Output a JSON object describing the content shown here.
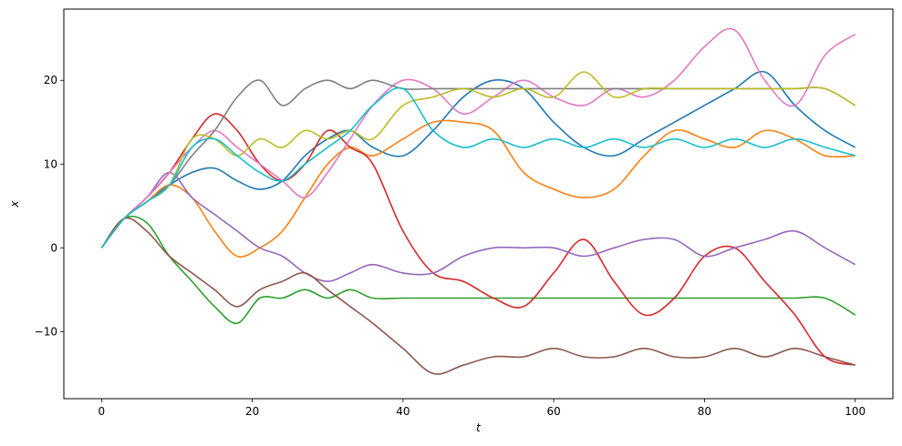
{
  "chart_data": {
    "type": "line",
    "xlabel": "t",
    "ylabel": "x",
    "xlim": [
      -5,
      105
    ],
    "ylim": [
      -18,
      28.5
    ],
    "xticks": [
      0,
      20,
      40,
      60,
      80,
      100
    ],
    "yticks": [
      -10,
      0,
      10,
      20
    ],
    "xtick_labels": [
      "0",
      "20",
      "40",
      "60",
      "80",
      "100"
    ],
    "ytick_labels": [
      "−10",
      "0",
      "10",
      "20"
    ],
    "grid": false,
    "colors": [
      "#1f77b4",
      "#ff7f0e",
      "#2ca02c",
      "#d62728",
      "#9467bd",
      "#8c564b",
      "#e377c2",
      "#7f7f7f",
      "#bcbd22",
      "#17becf"
    ],
    "series": [
      {
        "color": "#1f77b4",
        "x": [
          0,
          3,
          6,
          9,
          12,
          15,
          18,
          21,
          24,
          27,
          30,
          33,
          36,
          40,
          44,
          48,
          52,
          56,
          60,
          64,
          68,
          72,
          76,
          80,
          84,
          88,
          92,
          96,
          100
        ],
        "y": [
          0,
          3.5,
          5.5,
          7.5,
          9,
          9.5,
          8,
          7,
          8,
          11,
          13,
          14,
          12,
          11,
          14,
          18,
          20,
          19,
          15,
          12,
          11,
          13,
          15,
          17,
          19,
          21,
          17,
          14,
          12
        ]
      },
      {
        "color": "#ff7f0e",
        "x": [
          0,
          3,
          6,
          9,
          12,
          15,
          18,
          21,
          24,
          27,
          30,
          33,
          36,
          40,
          44,
          48,
          52,
          56,
          60,
          64,
          68,
          72,
          76,
          80,
          84,
          88,
          92,
          96,
          100
        ],
        "y": [
          0,
          3.5,
          5.5,
          7.5,
          6,
          2,
          -1,
          0,
          2,
          6,
          10,
          12,
          11,
          13,
          15,
          15,
          14,
          9,
          7,
          6,
          7,
          11,
          14,
          13,
          12,
          14,
          13,
          11,
          11
        ]
      },
      {
        "color": "#2ca02c",
        "x": [
          0,
          3,
          6,
          9,
          12,
          15,
          18,
          21,
          24,
          27,
          30,
          33,
          36,
          40,
          44,
          48,
          52,
          56,
          60,
          64,
          68,
          72,
          76,
          80,
          84,
          88,
          92,
          96,
          100
        ],
        "y": [
          0,
          3.5,
          3,
          -1,
          -4,
          -7,
          -9,
          -6,
          -6,
          -5,
          -6,
          -5,
          -6,
          -6,
          -6,
          -6,
          -6,
          -6,
          -6,
          -6,
          -6,
          -6,
          -6,
          -6,
          -6,
          -6,
          -6,
          -6,
          -8
        ]
      },
      {
        "color": "#d62728",
        "x": [
          0,
          3,
          6,
          9,
          12,
          15,
          18,
          21,
          24,
          27,
          30,
          33,
          36,
          40,
          44,
          48,
          52,
          56,
          60,
          64,
          68,
          72,
          76,
          80,
          84,
          88,
          92,
          96,
          100
        ],
        "y": [
          0,
          3.5,
          6,
          9,
          13,
          16,
          14,
          10,
          8,
          10,
          14,
          12,
          10,
          2,
          -3,
          -4,
          -6,
          -7,
          -3,
          1,
          -4,
          -8,
          -6,
          -1,
          0,
          -4,
          -8,
          -13,
          -14
        ]
      },
      {
        "color": "#9467bd",
        "x": [
          0,
          3,
          6,
          9,
          12,
          15,
          18,
          21,
          24,
          27,
          30,
          33,
          36,
          40,
          44,
          48,
          52,
          56,
          60,
          64,
          68,
          72,
          76,
          80,
          84,
          88,
          92,
          96,
          100
        ],
        "y": [
          0,
          3.5,
          6,
          9,
          6,
          4,
          2,
          0,
          -1,
          -3,
          -4,
          -3,
          -2,
          -3,
          -3,
          -1,
          0,
          0,
          0,
          -1,
          0,
          1,
          1,
          -1,
          0,
          1,
          2,
          0,
          -2
        ]
      },
      {
        "color": "#8c564b",
        "x": [
          0,
          3,
          6,
          9,
          12,
          15,
          18,
          21,
          24,
          27,
          30,
          33,
          36,
          40,
          44,
          48,
          52,
          56,
          60,
          64,
          68,
          72,
          76,
          80,
          84,
          88,
          92,
          96,
          100
        ],
        "y": [
          0,
          3.5,
          2,
          -1,
          -3,
          -5,
          -7,
          -5,
          -4,
          -3,
          -5,
          -7,
          -9,
          -12,
          -15,
          -14,
          -13,
          -13,
          -12,
          -13,
          -13,
          -12,
          -13,
          -13,
          -12,
          -13,
          -12,
          -13,
          -14
        ]
      },
      {
        "color": "#e377c2",
        "x": [
          0,
          3,
          6,
          9,
          12,
          15,
          18,
          21,
          24,
          27,
          30,
          33,
          36,
          40,
          44,
          48,
          52,
          56,
          60,
          64,
          68,
          72,
          76,
          80,
          84,
          88,
          92,
          96,
          100
        ],
        "y": [
          0,
          3.5,
          6,
          9,
          12,
          14,
          12,
          10,
          8,
          6,
          9,
          13,
          17,
          20,
          19,
          16,
          18,
          20,
          18,
          17,
          19,
          18,
          20,
          24,
          26,
          20,
          17,
          23,
          25.5
        ]
      },
      {
        "color": "#7f7f7f",
        "x": [
          0,
          3,
          6,
          9,
          12,
          15,
          18,
          21,
          24,
          27,
          30,
          33,
          36,
          40,
          44,
          48,
          52,
          56,
          60,
          64,
          68,
          72,
          76,
          80,
          84,
          88,
          92,
          96,
          100
        ],
        "y": [
          0,
          3.5,
          5.5,
          7.5,
          11,
          14,
          18,
          20,
          17,
          19,
          20,
          19,
          20,
          19,
          19,
          19,
          19,
          19,
          19,
          19,
          19,
          19,
          19,
          19,
          19,
          19,
          19,
          19,
          17
        ]
      },
      {
        "color": "#bcbd22",
        "x": [
          0,
          3,
          6,
          9,
          12,
          15,
          18,
          21,
          24,
          27,
          30,
          33,
          36,
          40,
          44,
          48,
          52,
          56,
          60,
          64,
          68,
          72,
          76,
          80,
          84,
          88,
          92,
          96,
          100
        ],
        "y": [
          0,
          3.5,
          5.5,
          7.5,
          13,
          13,
          11,
          13,
          12,
          14,
          13,
          14,
          13,
          17,
          18,
          19,
          18,
          19,
          18,
          21,
          18,
          19,
          19,
          19,
          19,
          19,
          19,
          19,
          17
        ]
      },
      {
        "color": "#17becf",
        "x": [
          0,
          3,
          6,
          9,
          12,
          15,
          18,
          21,
          24,
          27,
          30,
          33,
          36,
          40,
          44,
          48,
          52,
          56,
          60,
          64,
          68,
          72,
          76,
          80,
          84,
          88,
          92,
          96,
          100
        ],
        "y": [
          0,
          3.5,
          5.5,
          7.5,
          12,
          13,
          11,
          9,
          8,
          10,
          12,
          14,
          17,
          19,
          14,
          12,
          13,
          12,
          13,
          12,
          13,
          12,
          13,
          12,
          13,
          12,
          13,
          12,
          11
        ]
      }
    ]
  }
}
